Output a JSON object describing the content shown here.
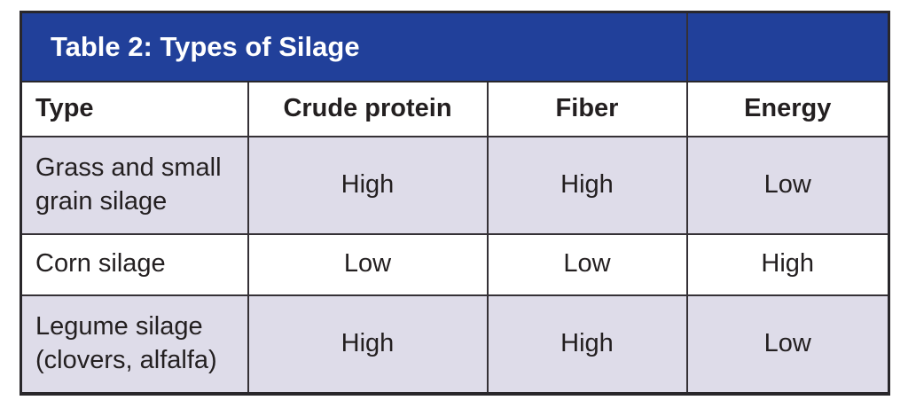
{
  "table": {
    "title": "Table 2: Types of Silage",
    "header": {
      "columns": [
        "Type",
        "Crude protein",
        "Fiber",
        "Energy"
      ]
    },
    "rows": [
      {
        "cells": [
          "Grass and small grain silage",
          "High",
          "High",
          "Low"
        ]
      },
      {
        "cells": [
          "Corn silage",
          "Low",
          "Low",
          "High"
        ]
      },
      {
        "cells": [
          "Legume silage (clovers, alfalfa)",
          "High",
          "High",
          "Low"
        ]
      }
    ],
    "colors": {
      "title_bg": "#21409A",
      "title_text": "#FFFFFF",
      "shaded_row_bg": "#DEDCE9",
      "plain_row_bg": "#FFFFFF",
      "border_dark": "#29272B",
      "text": "#231F20"
    }
  }
}
